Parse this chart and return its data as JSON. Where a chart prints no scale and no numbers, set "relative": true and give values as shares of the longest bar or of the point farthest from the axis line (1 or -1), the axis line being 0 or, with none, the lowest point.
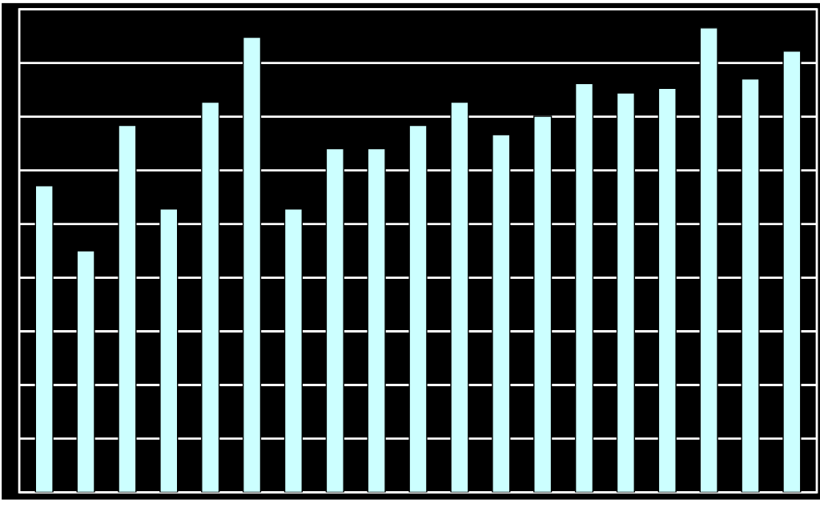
{
  "chart_data": {
    "type": "bar",
    "relative": true,
    "categories": [
      null,
      null,
      null,
      null,
      null,
      null,
      null,
      null,
      null,
      null,
      null,
      null,
      null,
      null,
      null,
      null,
      null,
      null,
      null
    ],
    "values": [
      0.66,
      0.52,
      0.79,
      0.61,
      0.84,
      0.98,
      0.61,
      0.74,
      0.74,
      0.79,
      0.84,
      0.77,
      0.81,
      0.88,
      0.86,
      0.87,
      1,
      0.89,
      0.95
    ],
    "color": "#ccffff",
    "grid": "y"
  }
}
